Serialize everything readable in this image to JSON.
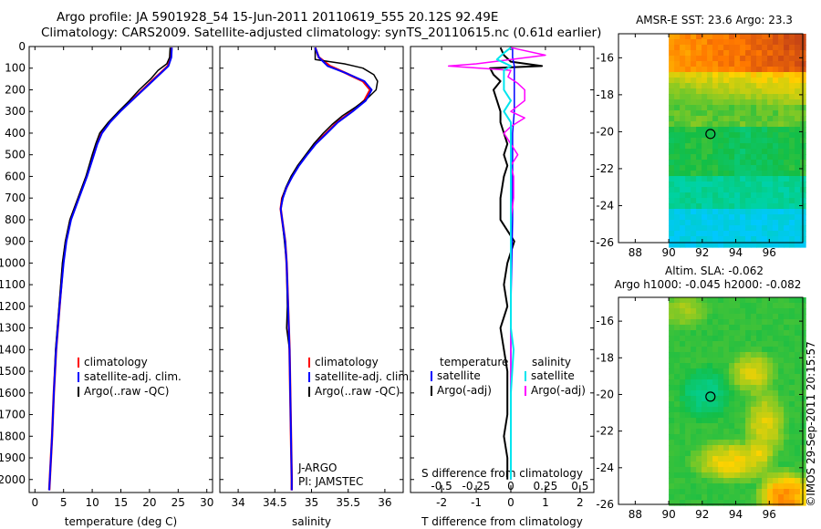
{
  "header": {
    "line1": "Argo profile: JA 5901928_54 15-Jun-2011 20110619_555 20.12S 92.49E",
    "line2": "Climatology: CARS2009. Satellite-adjusted climatology: synTS_20110615.nc (0.61d earlier)"
  },
  "colors": {
    "climatology": "#ff0000",
    "satellite": "#0000ff",
    "argo": "#000000",
    "salinity_satellite": "#00e5ee",
    "salinity_argo": "#ff00ff"
  },
  "chart_data": [
    {
      "id": "temperature",
      "type": "line",
      "xlabel": "temperature (deg C)",
      "ylabel": "",
      "xlim": [
        -1,
        31
      ],
      "ylim": [
        2060,
        0
      ],
      "xticks": [
        0,
        5,
        10,
        15,
        20,
        25,
        30
      ],
      "yticks": [
        0,
        100,
        200,
        300,
        400,
        500,
        600,
        700,
        800,
        900,
        1000,
        1100,
        1200,
        1300,
        1400,
        1500,
        1600,
        1700,
        1800,
        1900,
        2000
      ],
      "legend": [
        "climatology",
        "satellite-adj. clim.",
        "Argo(..raw -QC)"
      ],
      "series": [
        {
          "name": "climatology",
          "depth": [
            5,
            50,
            90,
            120,
            150,
            200,
            250,
            300,
            350,
            400,
            450,
            500,
            600,
            700,
            800,
            900,
            1000,
            1200,
            1400,
            1600,
            1800,
            2000,
            2050
          ],
          "values": [
            23.8,
            23.7,
            23.2,
            22.0,
            20.8,
            18.8,
            16.8,
            14.8,
            13.0,
            11.6,
            10.8,
            10.2,
            9.0,
            7.6,
            6.2,
            5.4,
            4.9,
            4.3,
            3.7,
            3.3,
            3.0,
            2.6,
            2.5
          ]
        },
        {
          "name": "satellite",
          "depth": [
            5,
            50,
            90,
            120,
            150,
            200,
            250,
            300,
            350,
            400,
            450,
            500,
            600,
            700,
            800,
            900,
            1000,
            1200,
            1400,
            1600,
            1800,
            2000,
            2050
          ],
          "values": [
            23.9,
            23.8,
            23.3,
            22.1,
            20.9,
            18.9,
            16.9,
            14.9,
            13.1,
            11.7,
            10.9,
            10.3,
            9.1,
            7.7,
            6.3,
            5.5,
            5.0,
            4.3,
            3.7,
            3.3,
            3.0,
            2.6,
            2.5
          ]
        },
        {
          "name": "argo",
          "depth": [
            5,
            50,
            80,
            110,
            150,
            200,
            250,
            300,
            350,
            400,
            450,
            500,
            600,
            700,
            800,
            900,
            1000,
            1200,
            1400,
            1600,
            1800,
            2000
          ],
          "values": [
            23.6,
            23.5,
            23.0,
            21.5,
            20.2,
            18.2,
            16.5,
            14.6,
            12.8,
            11.3,
            10.6,
            10.0,
            8.9,
            7.5,
            6.1,
            5.3,
            4.8,
            4.2,
            3.6,
            3.3,
            3.0,
            2.6
          ]
        }
      ]
    },
    {
      "id": "salinity",
      "type": "line",
      "xlabel": "salinity",
      "xlim": [
        33.75,
        36.25
      ],
      "xticks": [
        34,
        34.5,
        35,
        35.5,
        36
      ],
      "legend": [
        "climatology",
        "satellite-adj. clim.",
        "Argo(..raw -QC)"
      ],
      "annotation": [
        "J-ARGO",
        "PI: JAMSTEC"
      ],
      "series": [
        {
          "name": "climatology",
          "depth": [
            5,
            50,
            90,
            120,
            160,
            200,
            250,
            300,
            350,
            400,
            450,
            500,
            550,
            600,
            650,
            700,
            750,
            800,
            900,
            1000,
            1200,
            1400,
            1600,
            1800,
            2000,
            2050
          ],
          "values": [
            35.05,
            35.1,
            35.25,
            35.45,
            35.7,
            35.8,
            35.72,
            35.55,
            35.35,
            35.2,
            35.05,
            34.93,
            34.82,
            34.73,
            34.66,
            34.6,
            34.58,
            34.6,
            34.64,
            34.66,
            34.68,
            34.7,
            34.71,
            34.72,
            34.73,
            34.73
          ]
        },
        {
          "name": "satellite",
          "depth": [
            5,
            50,
            90,
            120,
            160,
            200,
            250,
            300,
            350,
            400,
            450,
            500,
            550,
            600,
            650,
            700,
            750,
            800,
            900,
            1000,
            1200,
            1400,
            1600,
            1800,
            2000,
            2050
          ],
          "values": [
            35.05,
            35.1,
            35.22,
            35.45,
            35.72,
            35.82,
            35.74,
            35.56,
            35.36,
            35.21,
            35.06,
            34.94,
            34.83,
            34.74,
            34.66,
            34.61,
            34.58,
            34.6,
            34.64,
            34.66,
            34.68,
            34.7,
            34.71,
            34.72,
            34.73,
            34.73
          ]
        },
        {
          "name": "argo",
          "depth": [
            5,
            60,
            80,
            100,
            130,
            160,
            200,
            240,
            280,
            320,
            360,
            400,
            450,
            500,
            550,
            600,
            650,
            700,
            750,
            800,
            900,
            1000,
            1200,
            1300,
            1400,
            1600,
            1800,
            2000
          ],
          "values": [
            35.05,
            35.05,
            35.45,
            35.7,
            35.85,
            35.9,
            35.88,
            35.76,
            35.6,
            35.42,
            35.28,
            35.16,
            35.03,
            34.92,
            34.81,
            34.72,
            34.65,
            34.6,
            34.58,
            34.6,
            34.63,
            34.66,
            34.67,
            34.66,
            34.7,
            34.71,
            34.72,
            34.73
          ]
        }
      ]
    },
    {
      "id": "difference",
      "type": "line",
      "xlabel": "T difference from climatology",
      "xlabel_top": "S difference from climatology",
      "xlim": [
        -2.9,
        2.4
      ],
      "xticks": [
        -2,
        -1,
        0,
        1,
        2
      ],
      "sticks": [
        -0.5,
        -0.25,
        0,
        0.25,
        0.5
      ],
      "stick_labels": [
        "-0.5",
        "-0.25",
        "0",
        "0.25",
        "0.5"
      ],
      "legend_t": [
        "temperature",
        "satellite",
        "Argo(-adj)"
      ],
      "legend_s": [
        "salinity",
        "satellite",
        "Argo(-adj)"
      ],
      "series": [
        {
          "name": "temperature satellite",
          "depth": [
            5,
            50,
            90,
            120,
            200,
            300,
            400,
            500,
            800,
            1200,
            1600,
            2000
          ],
          "values": [
            0.05,
            0.05,
            0.1,
            0.1,
            0.1,
            0.1,
            0.05,
            0.05,
            0.05,
            0.0,
            0.0,
            0.0
          ]
        },
        {
          "name": "temperature argo",
          "depth": [
            5,
            40,
            70,
            90,
            100,
            130,
            160,
            200,
            250,
            300,
            350,
            400,
            450,
            500,
            550,
            600,
            700,
            800,
            900,
            1000,
            1100,
            1200,
            1300,
            1400,
            1500,
            1600,
            1700,
            1800,
            1900,
            2000
          ],
          "values": [
            -0.3,
            -0.2,
            0.0,
            0.9,
            -0.6,
            -0.5,
            -0.3,
            -0.5,
            -0.4,
            -0.3,
            -0.3,
            -0.2,
            -0.1,
            -0.2,
            -0.1,
            -0.2,
            -0.3,
            -0.3,
            0.1,
            -0.1,
            -0.2,
            -0.1,
            -0.3,
            -0.2,
            -0.1,
            -0.1,
            -0.1,
            -0.2,
            -0.1,
            -0.1
          ]
        },
        {
          "name": "salinity satellite",
          "depth": [
            5,
            30,
            60,
            90,
            110,
            150,
            200,
            250,
            300,
            350,
            400,
            450,
            500,
            600,
            800,
            1000,
            1300,
            1400,
            1600,
            2000
          ],
          "values": [
            0.0,
            -0.05,
            -0.1,
            0.0,
            -0.05,
            -0.05,
            -0.05,
            0.0,
            -0.05,
            0.0,
            0.0,
            0.0,
            0.0,
            0.0,
            0.0,
            0.0,
            0.0,
            0.02,
            0.0,
            0.0
          ]
        },
        {
          "name": "salinity argo",
          "depth": [
            5,
            40,
            80,
            90,
            110,
            140,
            170,
            200,
            250,
            300,
            330,
            370,
            400,
            450,
            500,
            550,
            600,
            700,
            800,
            900,
            1000,
            1100,
            1200,
            1300,
            1400,
            1500,
            1600,
            1800,
            2000
          ],
          "values": [
            0.0,
            0.25,
            -0.25,
            -0.45,
            0.0,
            -0.02,
            0.05,
            0.1,
            0.1,
            0.0,
            0.1,
            0.0,
            -0.05,
            0.0,
            0.05,
            0.0,
            0.02,
            0.02,
            0.0,
            0.0,
            0.0,
            0.0,
            0.0,
            0.0,
            0.0,
            0.0,
            0.0,
            0.0,
            0.0
          ]
        }
      ]
    },
    {
      "id": "sst_map",
      "type": "heatmap",
      "title": "AMSR-E SST: 23.6 Argo: 23.3",
      "xlim": [
        87,
        98
      ],
      "ylim": [
        -26,
        -14.7
      ],
      "xticks": [
        88,
        90,
        92,
        94,
        96
      ],
      "yticks": [
        -16,
        -18,
        -20,
        -22,
        -24,
        -26
      ],
      "data_lon_start": 90,
      "marker": [
        92.49,
        -20.12
      ]
    },
    {
      "id": "sla_map",
      "type": "heatmap",
      "title": "Altim. SLA: -0.062",
      "subtitle": "Argo h1000: -0.045 h2000: -0.082",
      "xlim": [
        87,
        98
      ],
      "ylim": [
        -26,
        -14.7
      ],
      "xticks": [
        88,
        90,
        92,
        94,
        96
      ],
      "yticks": [
        -16,
        -18,
        -20,
        -22,
        -24,
        -26
      ],
      "data_lon_start": 90,
      "marker": [
        92.49,
        -20.12
      ]
    }
  ],
  "footer": {
    "stamp": "©IMOS 29-Sep-2011 20:15:57"
  }
}
